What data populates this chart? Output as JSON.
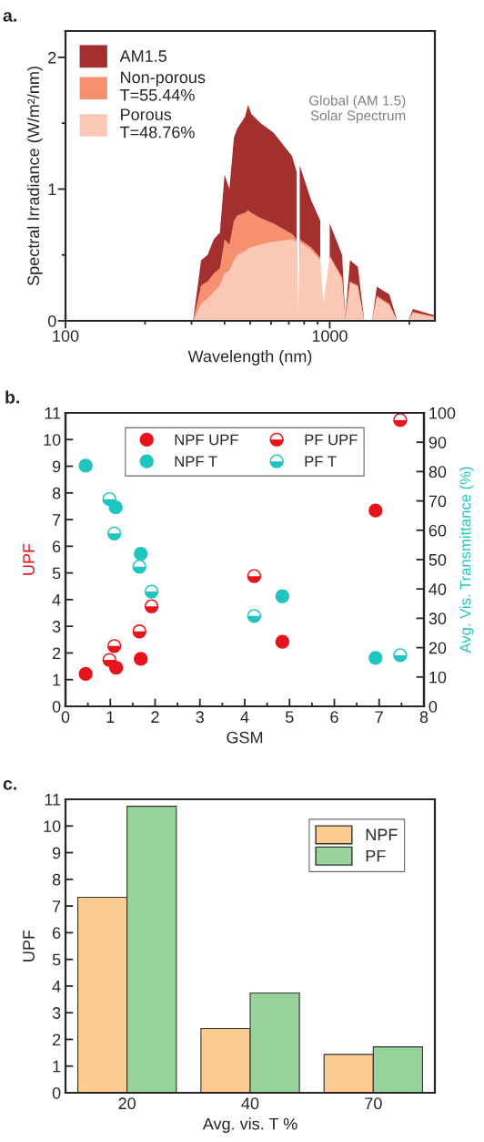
{
  "chart_data": [
    {
      "type": "area",
      "title": "a.",
      "xlabel": "Wavelength (nm)",
      "ylabel": "Spectral Irradiance (W/m²/nm)",
      "log": "x",
      "xlim": [
        100,
        2500
      ],
      "xticks": [
        100,
        {
          "value": 200,
          "label": null
        },
        {
          "value": 300,
          "label": null
        },
        {
          "value": 400,
          "label": null
        },
        {
          "value": 500,
          "label": null
        },
        {
          "value": 600,
          "label": null
        },
        {
          "value": 700,
          "label": null
        },
        {
          "value": 800,
          "label": null
        },
        {
          "value": 900,
          "label": null
        },
        1000,
        {
          "value": 2000,
          "label": null
        }
      ],
      "ylim": [
        0,
        2.2
      ],
      "yticks": [
        0,
        {
          "value": 0.5,
          "label": null
        },
        1,
        {
          "value": 1.5,
          "label": null
        },
        2
      ],
      "legend": "top left",
      "annotations": [
        "Global (AM 1.5)\nSolar Spectrum"
      ],
      "x": [
        304,
        326,
        345,
        364,
        384,
        400,
        417,
        434,
        447,
        478,
        491,
        505,
        548,
        611,
        664,
        720,
        750,
        760,
        770,
        849,
        921,
        946,
        1000,
        1114,
        1145,
        1193,
        1278,
        1351,
        1447,
        1507,
        1682,
        1800,
        1981,
        2064,
        2500
      ],
      "series": [
        {
          "name": "AM1.5",
          "color": "#a3302f",
          "values": [
            0,
            0.46,
            0.5,
            0.62,
            0.67,
            1.11,
            1.0,
            1.39,
            1.46,
            1.55,
            1.64,
            1.57,
            1.5,
            1.43,
            1.34,
            1.25,
            1.13,
            null,
            1.18,
            0.92,
            0.76,
            null,
            0.74,
            0.5,
            0.02,
            0.46,
            0.41,
            0,
            0,
            0.26,
            0.2,
            0,
            0,
            0.09,
            0.04
          ]
        },
        {
          "name": "Non-porous\nT=55.44%",
          "color": "#f7906f",
          "values": [
            0,
            0.27,
            0.3,
            0.36,
            0.4,
            0.62,
            0.58,
            0.76,
            0.8,
            0.82,
            0.84,
            0.82,
            0.78,
            0.74,
            0.7,
            0.66,
            0.62,
            null,
            0.62,
            0.56,
            0.48,
            null,
            0.5,
            0.33,
            0.01,
            0.3,
            0.27,
            0,
            0,
            0.19,
            0.13,
            0,
            0,
            0.07,
            0.03
          ]
        },
        {
          "name": "Porous\nT=48.76%",
          "color": "#fcc8b6",
          "values": [
            0,
            0.13,
            0.17,
            0.22,
            0.27,
            0.36,
            0.38,
            0.46,
            0.5,
            0.53,
            0.55,
            0.56,
            0.58,
            0.6,
            0.61,
            0.62,
            0.6,
            0.06,
            0.6,
            0.54,
            0.46,
            0.14,
            0.48,
            0.32,
            0.01,
            0.29,
            0.26,
            0,
            0,
            0.18,
            0.12,
            0,
            0,
            0.06,
            0.03
          ]
        }
      ]
    },
    {
      "type": "scatter",
      "title": "b.",
      "xlabel": "GSM",
      "ylabel": "UPF",
      "y2label": "Avg. Vis. Transmittance (%)",
      "marker": "circle",
      "legend": "top",
      "xlim": [
        0,
        8
      ],
      "xticks": [
        0,
        {
          "value": 0.5,
          "label": null
        },
        1,
        {
          "value": 1.5,
          "label": null
        },
        2,
        {
          "value": 2.5,
          "label": null
        },
        3,
        {
          "value": 3.5,
          "label": null
        },
        4,
        {
          "value": 4.5,
          "label": null
        },
        5,
        {
          "value": 5.5,
          "label": null
        },
        6,
        {
          "value": 6.5,
          "label": null
        },
        7,
        {
          "value": 7.5,
          "label": null
        },
        8
      ],
      "ylim": [
        0,
        11
      ],
      "yticks": [
        0,
        1,
        2,
        3,
        4,
        5,
        6,
        7,
        8,
        9,
        10,
        11
      ],
      "y2lim": [
        0,
        100
      ],
      "y2ticks": [
        0,
        10,
        20,
        30,
        40,
        50,
        60,
        70,
        80,
        90,
        100
      ],
      "series": [
        {
          "name": "NPF UPF",
          "color": "#e8141c",
          "x": [
            0.45,
            1.13,
            1.68,
            4.84,
            6.92
          ],
          "values": [
            1.22,
            1.45,
            1.78,
            2.42,
            7.34
          ]
        },
        {
          "name": "NPF T",
          "color": "#1fc6bf",
          "axis": "y2",
          "x": [
            0.45,
            1.12,
            1.68,
            4.84,
            6.92
          ],
          "values": [
            82.0,
            67.8,
            52.0,
            37.5,
            16.5
          ]
        },
        {
          "name": "PF UPF",
          "color": "#e8141c",
          "x": [
            0.98,
            1.09,
            1.65,
            1.92,
            4.21,
            7.47
          ],
          "values": [
            1.74,
            2.26,
            2.81,
            3.75,
            4.88,
            10.73
          ]
        },
        {
          "name": "PF T",
          "color": "#1fc6bf",
          "axis": "y2",
          "x": [
            0.98,
            1.09,
            1.65,
            1.92,
            4.21,
            7.47
          ],
          "values": [
            70.6,
            58.9,
            47.6,
            39.1,
            30.8,
            17.4
          ]
        }
      ]
    },
    {
      "type": "bar",
      "title": "c.",
      "xlabel": "Avg. vis. T %",
      "ylabel": "UPF",
      "categories": [
        "20",
        "40",
        "70"
      ],
      "ylim": [
        0,
        11
      ],
      "yticks": [
        0,
        1,
        2,
        3,
        4,
        5,
        6,
        7,
        8,
        9,
        10,
        11
      ],
      "legend": "top right",
      "series": [
        {
          "name": "NPF",
          "color": "#fdca8f",
          "values": [
            7.33,
            2.41,
            1.44
          ]
        },
        {
          "name": "PF",
          "color": "#98d49a",
          "values": [
            10.74,
            3.74,
            1.72
          ]
        }
      ]
    }
  ]
}
